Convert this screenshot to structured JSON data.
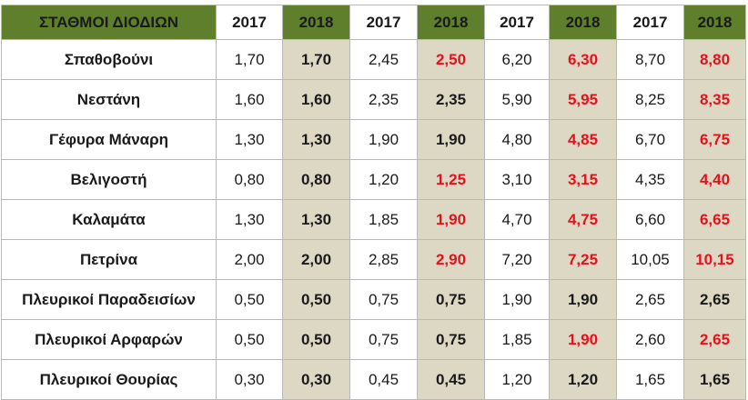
{
  "header": {
    "station_title": "ΣΤΑΘΜΟΙ ΔΙΟΔΙΩΝ",
    "years": [
      "2017",
      "2018",
      "2017",
      "2018",
      "2017",
      "2018",
      "2017",
      "2018"
    ]
  },
  "colors": {
    "header_green": "#5f7f2c",
    "shaded_cell": "#ddd8c4",
    "increase_red": "#e8101a"
  },
  "rows": [
    {
      "station": "Σπαθοβούνι",
      "cells": [
        "1,70",
        "1,70",
        "2,45",
        "2,50",
        "6,20",
        "6,30",
        "8,70",
        "8,80"
      ],
      "red": [
        false,
        true,
        true,
        true
      ]
    },
    {
      "station": "Νεστάνη",
      "cells": [
        "1,60",
        "1,60",
        "2,35",
        "2,35",
        "5,90",
        "5,95",
        "8,25",
        "8,35"
      ],
      "red": [
        false,
        false,
        true,
        true
      ]
    },
    {
      "station": "Γέφυρα Μάναρη",
      "cells": [
        "1,30",
        "1,30",
        "1,90",
        "1,90",
        "4,80",
        "4,85",
        "6,70",
        "6,75"
      ],
      "red": [
        false,
        false,
        true,
        true
      ]
    },
    {
      "station": "Βελιγοστή",
      "cells": [
        "0,80",
        "0,80",
        "1,20",
        "1,25",
        "3,10",
        "3,15",
        "4,35",
        "4,40"
      ],
      "red": [
        false,
        true,
        true,
        true
      ]
    },
    {
      "station": "Καλαμάτα",
      "cells": [
        "1,30",
        "1,30",
        "1,85",
        "1,90",
        "4,70",
        "4,75",
        "6,60",
        "6,65"
      ],
      "red": [
        false,
        true,
        true,
        true
      ]
    },
    {
      "station": "Πετρίνα",
      "cells": [
        "2,00",
        "2,00",
        "2,85",
        "2,90",
        "7,20",
        "7,25",
        "10,05",
        "10,15"
      ],
      "red": [
        false,
        true,
        true,
        true
      ]
    },
    {
      "station": "Πλευρικοί Παραδεισίων",
      "cells": [
        "0,50",
        "0,50",
        "0,75",
        "0,75",
        "1,90",
        "1,90",
        "2,65",
        "2,65"
      ],
      "red": [
        false,
        false,
        false,
        false
      ]
    },
    {
      "station": "Πλευρικοί Αρφαρών",
      "cells": [
        "0,50",
        "0,50",
        "0,75",
        "0,75",
        "1,85",
        "1,90",
        "2,60",
        "2,65"
      ],
      "red": [
        false,
        false,
        true,
        true
      ]
    },
    {
      "station": "Πλευρικοί Θουρίας",
      "cells": [
        "0,30",
        "0,30",
        "0,45",
        "0,45",
        "1,20",
        "1,20",
        "1,65",
        "1,65"
      ],
      "red": [
        false,
        false,
        false,
        false
      ]
    }
  ]
}
